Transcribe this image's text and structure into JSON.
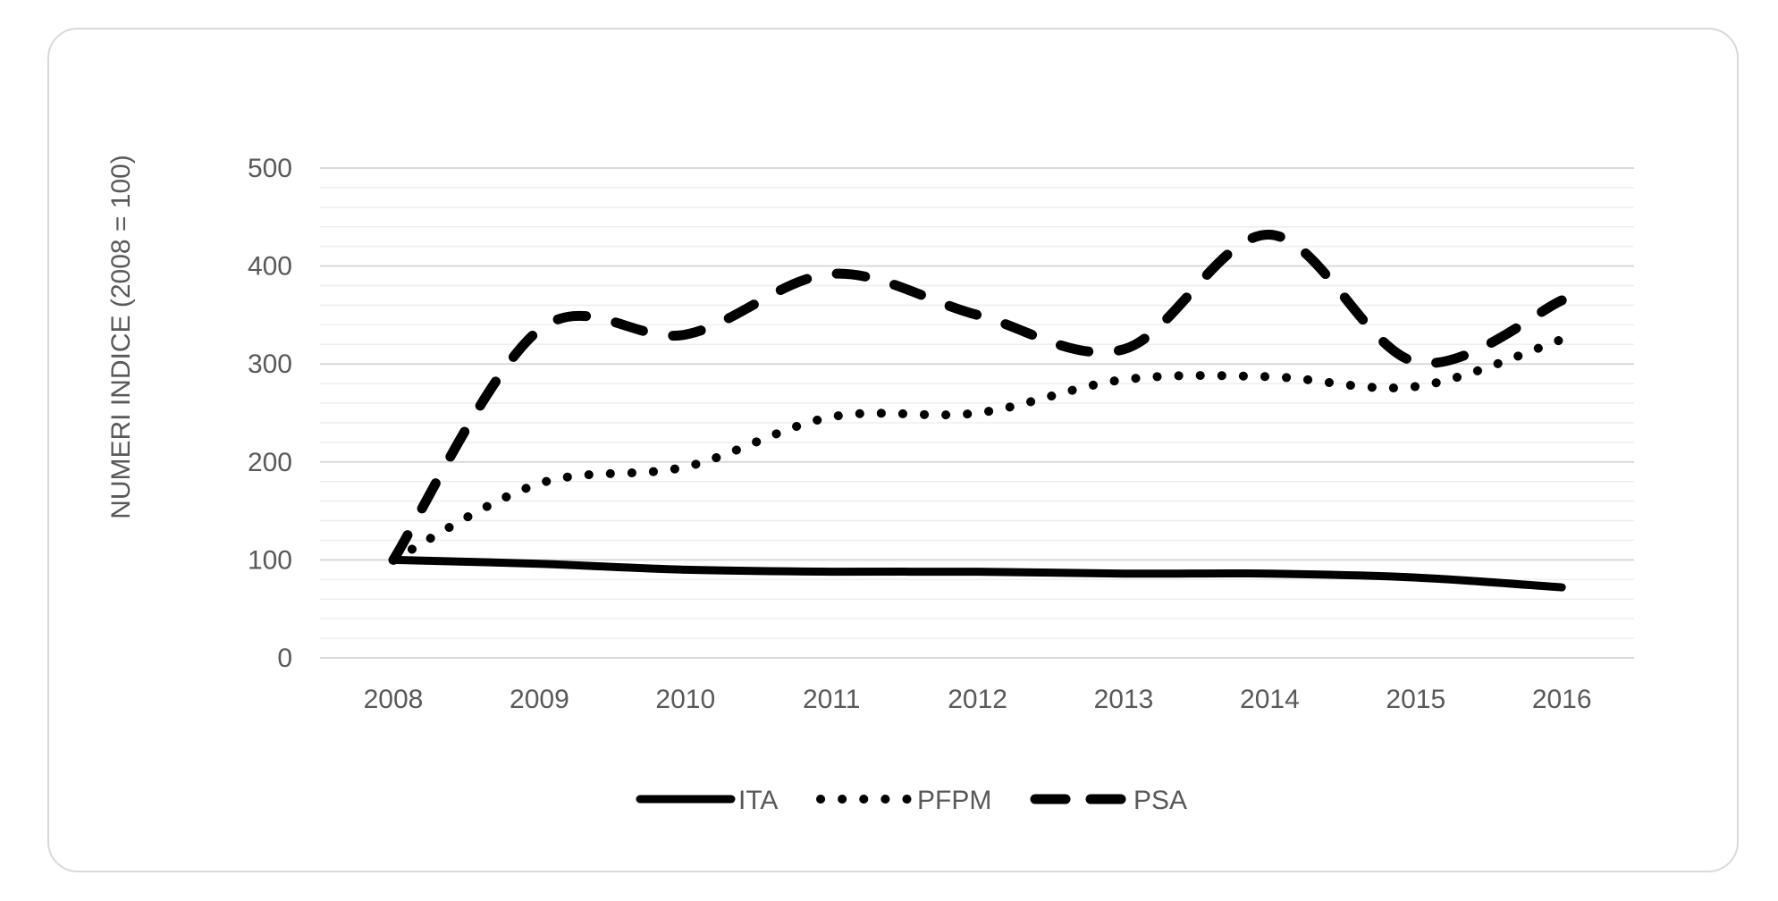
{
  "chart_data": {
    "type": "line",
    "title": "",
    "xlabel": "",
    "ylabel": "NUMERI INDICE  (2008 = 100)",
    "ylim": [
      0,
      500
    ],
    "yticks": [
      0,
      100,
      200,
      300,
      400,
      500
    ],
    "x": [
      "2008",
      "2009",
      "2010",
      "2011",
      "2012",
      "2013",
      "2014",
      "2015",
      "2016"
    ],
    "grid": true,
    "legend_position": "bottom",
    "series": [
      {
        "name": "ITA",
        "style": "solid",
        "values": [
          100,
          96,
          90,
          88,
          88,
          86,
          86,
          82,
          72
        ]
      },
      {
        "name": "PFPM",
        "style": "dotted",
        "values": [
          100,
          178,
          195,
          246,
          250,
          284,
          287,
          277,
          325
        ]
      },
      {
        "name": "PSA",
        "style": "dashed",
        "values": [
          100,
          335,
          330,
          392,
          350,
          315,
          432,
          302,
          365
        ]
      }
    ],
    "colors": {
      "line": "#000000",
      "major_grid": "#d9d9d9",
      "minor_grid": "#eeeeee",
      "text": "#595959"
    }
  }
}
